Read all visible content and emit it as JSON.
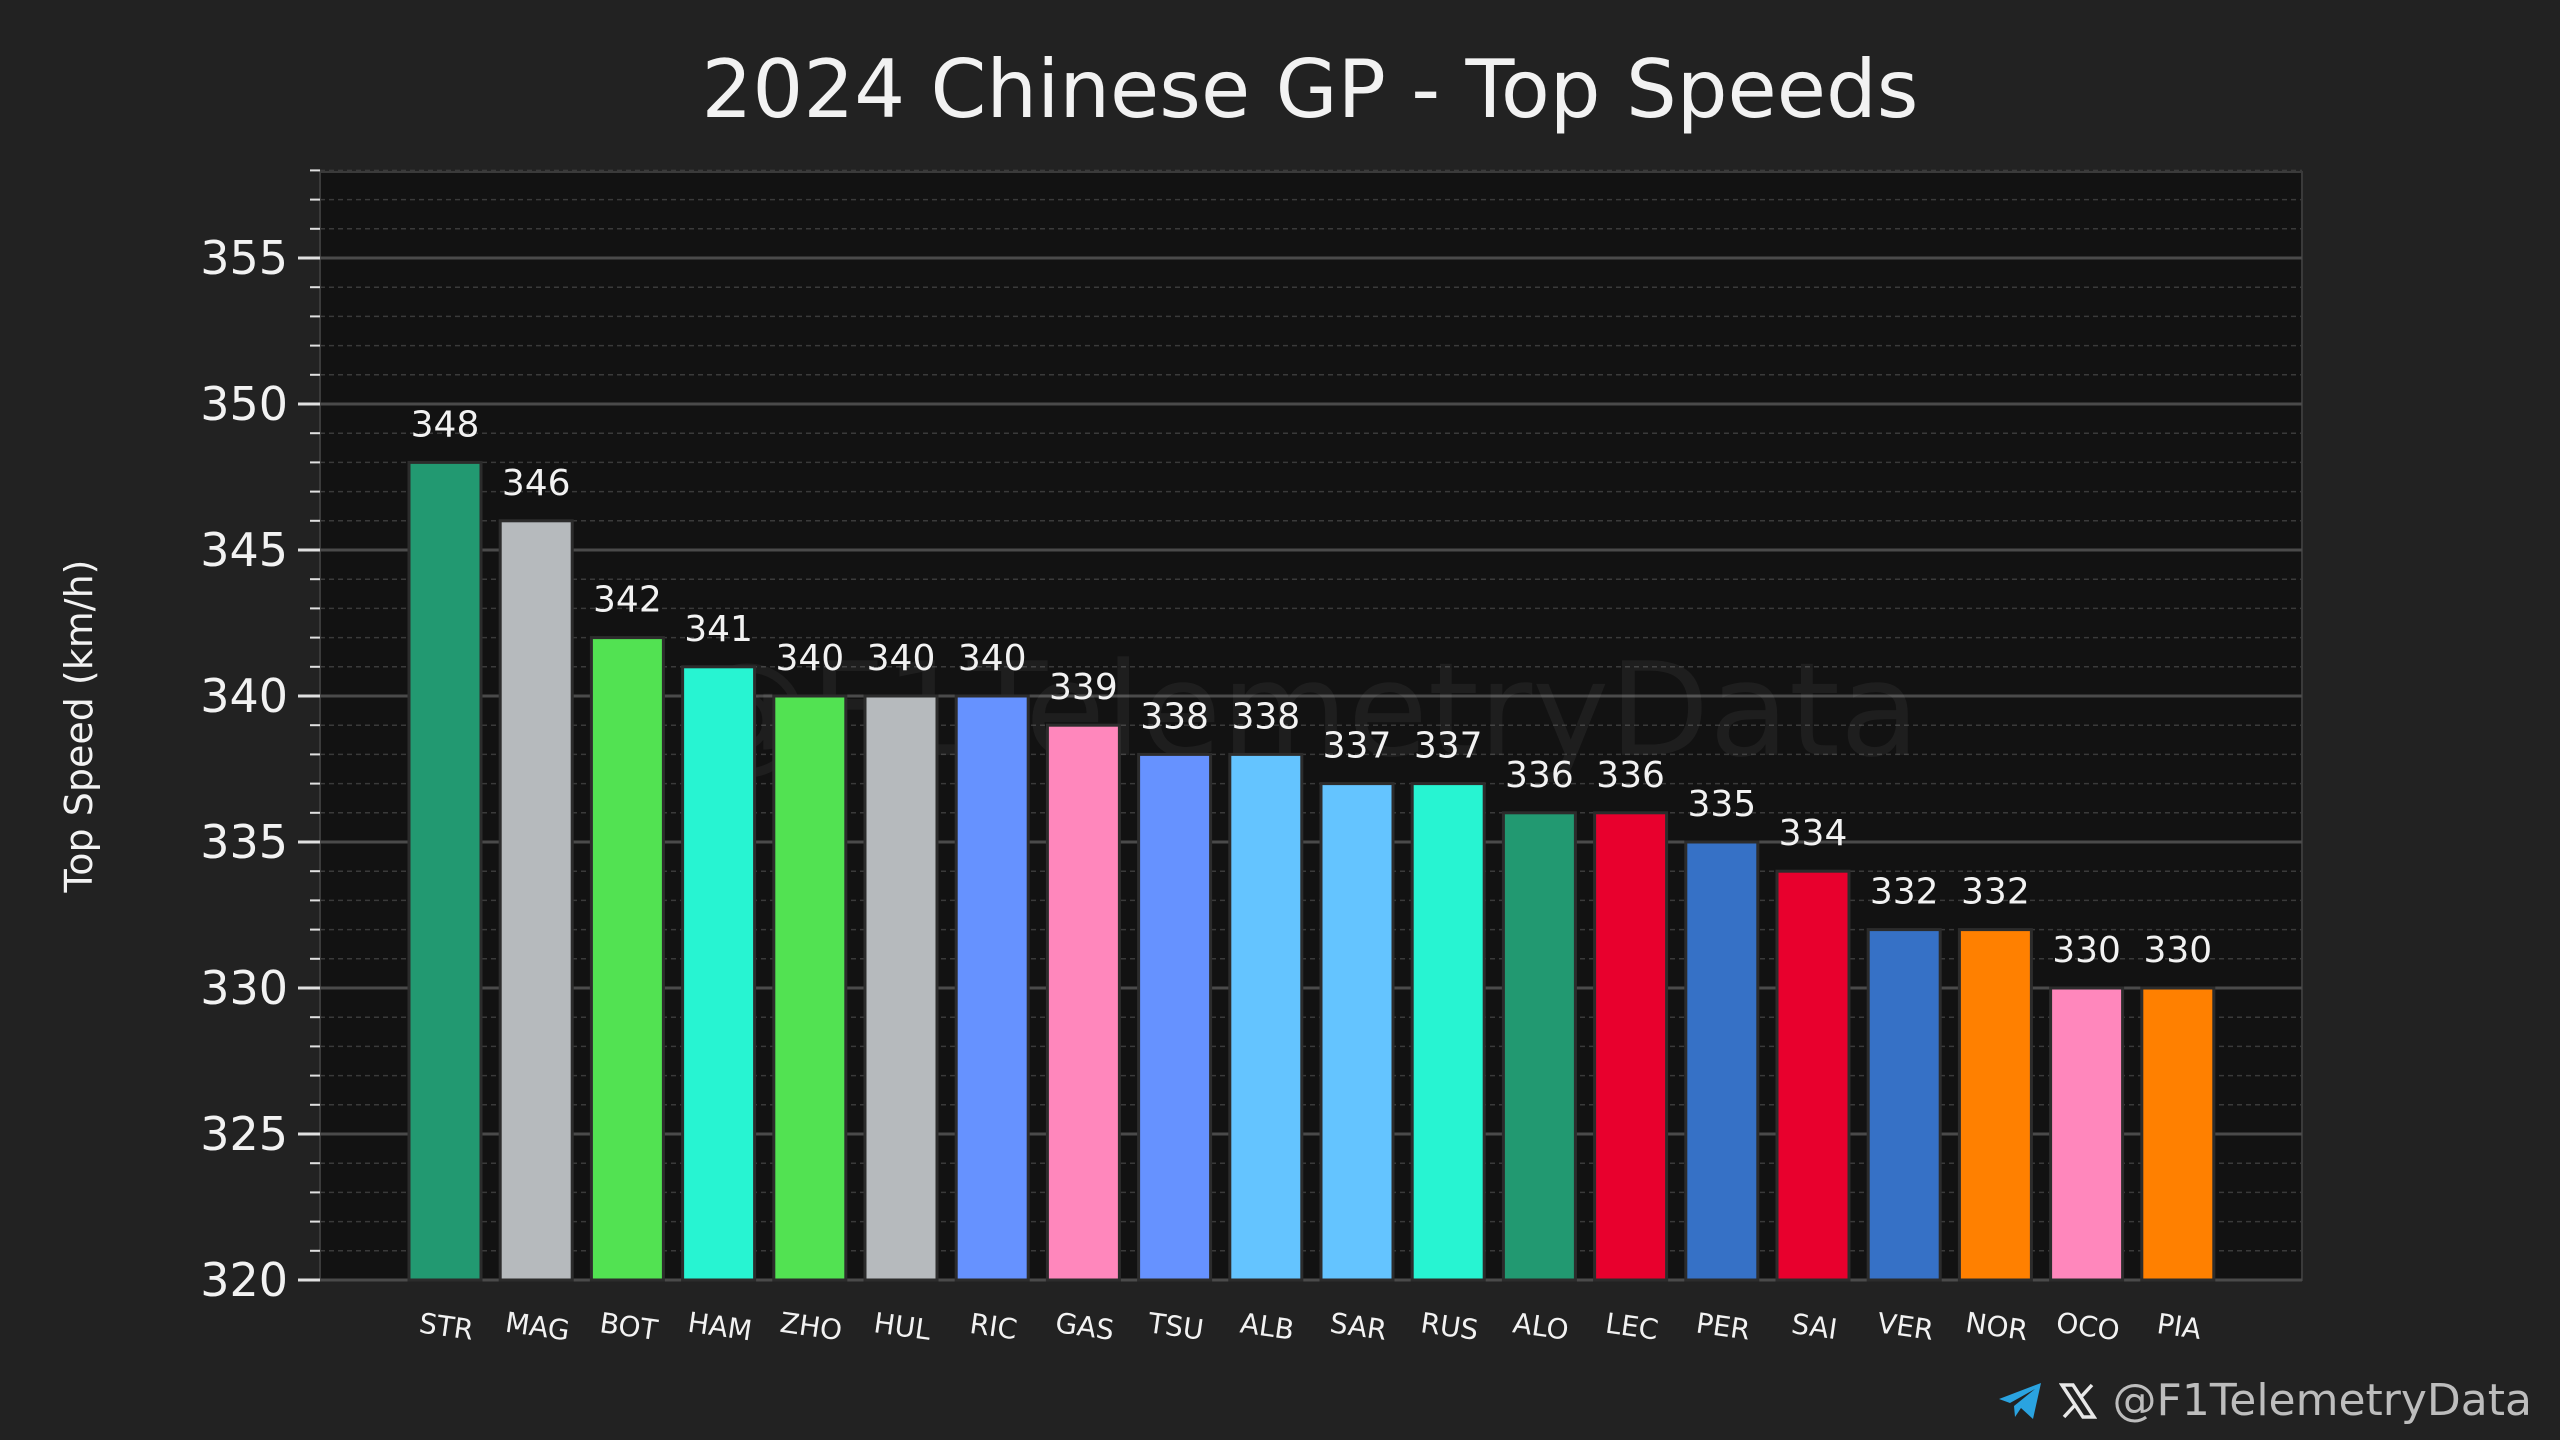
{
  "chart_data": {
    "type": "bar",
    "title": "2024 Chinese GP - Top Speeds",
    "xlabel": "",
    "ylabel": "Top Speed (km/h)",
    "ylim": [
      320,
      358
    ],
    "yticks": [
      320,
      325,
      330,
      335,
      340,
      345,
      350,
      355
    ],
    "categories": [
      "STR",
      "MAG",
      "BOT",
      "HAM",
      "ZHO",
      "HUL",
      "RIC",
      "GAS",
      "TSU",
      "ALB",
      "SAR",
      "RUS",
      "ALO",
      "LEC",
      "PER",
      "SAI",
      "VER",
      "NOR",
      "OCO",
      "PIA"
    ],
    "values": [
      348,
      346,
      342,
      341,
      340,
      340,
      340,
      339,
      338,
      338,
      337,
      337,
      336,
      336,
      335,
      334,
      332,
      332,
      330,
      330
    ],
    "colors": [
      "#229971",
      "#B6BABD",
      "#52E252",
      "#27F4D2",
      "#52E252",
      "#B6BABD",
      "#6692FF",
      "#FF87BC",
      "#6692FF",
      "#64C4FF",
      "#64C4FF",
      "#27F4D2",
      "#229971",
      "#E8002D",
      "#3671C6",
      "#E8002D",
      "#3671C6",
      "#FF8000",
      "#FF87BC",
      "#FF8000"
    ],
    "grid": true,
    "watermark": "@F1TelemetryData"
  },
  "credit": {
    "handle": "@F1TelemetryData",
    "icons": [
      "telegram-icon",
      "x-icon"
    ]
  },
  "theme": {
    "background": "#222222",
    "plot_background": "#121212",
    "text": "#f2f2f2",
    "telegram_blue": "#2AA3E0"
  }
}
